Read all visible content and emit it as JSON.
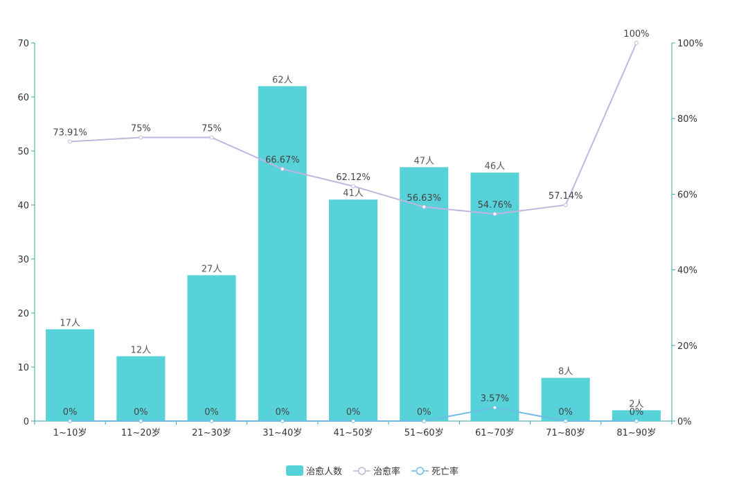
{
  "chart_data": {
    "type": "bar",
    "categories": [
      "1~10岁",
      "11~20岁",
      "21~30岁",
      "31~40岁",
      "41~50岁",
      "51~60岁",
      "61~70岁",
      "71~80岁",
      "81~90岁"
    ],
    "series": [
      {
        "name": "治愈人数",
        "type": "bar",
        "axis": "left",
        "values": [
          17,
          12,
          27,
          62,
          41,
          47,
          46,
          8,
          2
        ],
        "labels": [
          "17人",
          "12人",
          "27人",
          "62人",
          "41人",
          "47人",
          "46人",
          "8人",
          "2人"
        ],
        "color": "#56d2d8"
      },
      {
        "name": "治愈率",
        "type": "line",
        "axis": "right",
        "values": [
          73.91,
          75,
          75,
          66.67,
          62.12,
          56.63,
          54.76,
          57.14,
          100
        ],
        "labels": [
          "73.91%",
          "75%",
          "75%",
          "66.67%",
          "62.12%",
          "56.63%",
          "54.76%",
          "57.14%",
          "100%"
        ],
        "color": "#c3b5de"
      },
      {
        "name": "死亡率",
        "type": "line",
        "axis": "right",
        "values": [
          0,
          0,
          0,
          0,
          0,
          0,
          3.57,
          0,
          0
        ],
        "labels": [
          "0%",
          "0%",
          "0%",
          "0%",
          "0%",
          "0%",
          "3.57%",
          "0%",
          "0%"
        ],
        "color": "#6ebce6"
      }
    ],
    "y_left": {
      "range": [
        0,
        70
      ],
      "ticks": [
        "0",
        "10",
        "20",
        "30",
        "40",
        "50",
        "60",
        "70"
      ]
    },
    "y_right": {
      "range": [
        0,
        100
      ],
      "ticks": [
        "0%",
        "20%",
        "40%",
        "60%",
        "80%",
        "100%"
      ]
    },
    "axis_color": "#3aa6a6",
    "grid": false,
    "legend": "bottom-center"
  }
}
